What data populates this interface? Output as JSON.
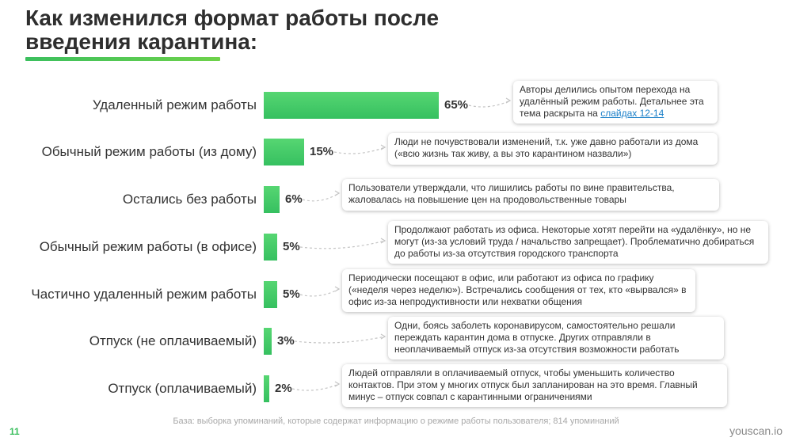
{
  "page": {
    "title": "Как изменился формат работы после\nвведения карантина:",
    "footnote": "База: выборка упоминаний, которые содержат информацию о режиме работы пользователя; 814 упоминаний",
    "page_number": "11",
    "brand": "youscan.io"
  },
  "colors": {
    "accent": "#3bbf5e",
    "bar": "#45cc68",
    "link": "#1a7fc8"
  },
  "chart_data": {
    "type": "bar",
    "orientation": "horizontal",
    "categories": [
      "Удаленный режим работы",
      "Обычный режим работы (из дому)",
      "Остались без работы",
      "Обычный режим работы (в офисе)",
      "Частично удаленный режим работы",
      "Отпуск (не оплачиваемый)",
      "Отпуск  (оплачиваемый)"
    ],
    "values": [
      65,
      15,
      6,
      5,
      5,
      3,
      2
    ],
    "value_labels": [
      "65%",
      "15%",
      "6%",
      "5%",
      "5%",
      "3%",
      "2%"
    ],
    "xlim": [
      0,
      65
    ],
    "grid": false,
    "annotations": [
      {
        "text": "Авторы делились опытом перехода на удалённый режим работы. Детальнее эта тема раскрыта на ",
        "link": "слайдах 12-14"
      },
      {
        "text": "Люди не почувствовали изменений, т.к. уже давно работали из дома («всю жизнь так живу, а вы это карантином назвали»)"
      },
      {
        "text": "Пользователи утверждали, что лишились работы по вине правительства, жаловалась на повышение цен на продовольственные товары"
      },
      {
        "text": "Продолжают работать из офиса. Некоторые хотят перейти на «удалёнку», но не могут (из-за условий труда / начальство запрещает). Проблематично добираться до работы из-за отсутствия городского транспорта"
      },
      {
        "text": "Периодически посещают в офис, или работают из офиса по графику («неделя через неделю»). Встречались сообщения от тех, кто «вырвался» в офис из-за непродуктивности или нехватки общения"
      },
      {
        "text": "Одни, боясь заболеть коронавирусом, самостоятельно решали переждать карантин дома в отпуске.  Других отправляли в неоплачиваемый отпуск из-за отсутствия возможности работать"
      },
      {
        "text": "Людей отправляли в оплачиваемый отпуск, чтобы уменьшить количество контактов. При этом у многих отпуск был запланирован на это время. Главный минус – отпуск совпал с карантинными ограничениями"
      }
    ]
  }
}
